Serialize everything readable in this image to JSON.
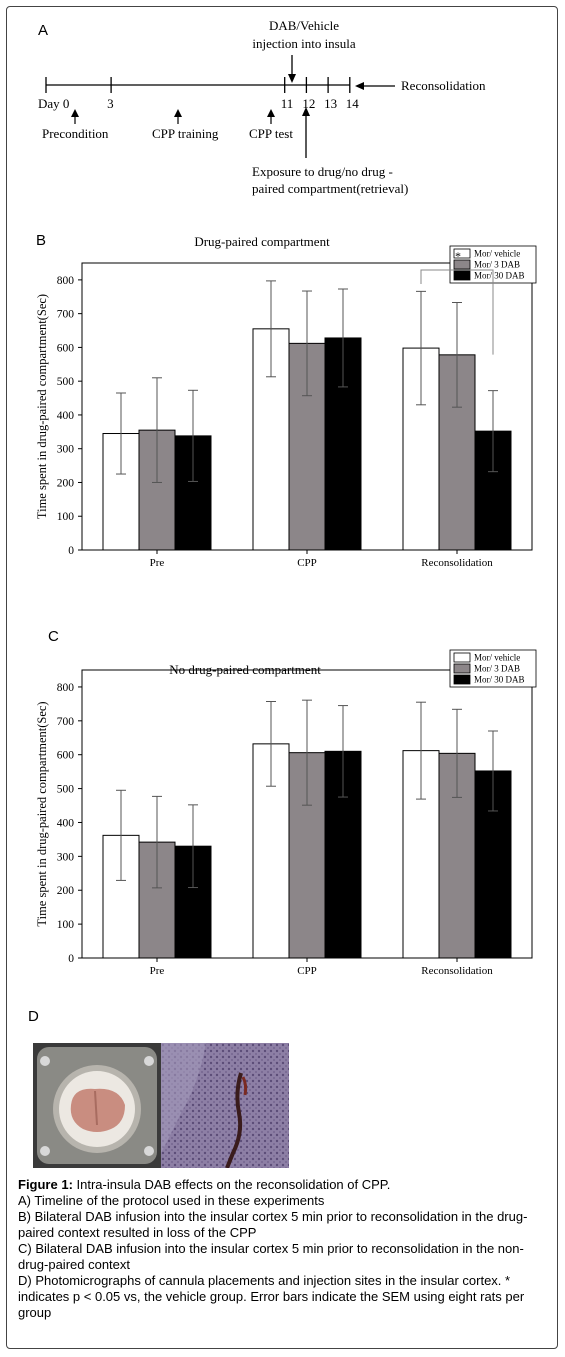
{
  "panels": {
    "a": "A",
    "b": "B",
    "c": "C",
    "d": "D"
  },
  "timeline": {
    "tick_labels": [
      {
        "label": "Day 0",
        "day": 0
      },
      {
        "label": "3",
        "day": 3
      },
      {
        "label": "11",
        "day": 11
      },
      {
        "label": "12",
        "day": 12
      },
      {
        "label": "13",
        "day": 13
      },
      {
        "label": "14",
        "day": 14
      }
    ],
    "events": {
      "precondition": "Precondition",
      "cpp_training": "CPP training",
      "cpp_test": "CPP test",
      "injection_line1": "DAB/Vehicle",
      "injection_line2": "injection into  insula",
      "exposure_line1": "Exposure to drug/no drug -",
      "exposure_line2": "paired compartment(retrieval)",
      "reconsolidation": "Reconsolidation"
    }
  },
  "chart_data": [
    {
      "type": "bar",
      "title": "Drug-paired compartment",
      "ylabel": "Time spent in drug-paired compartment(Sec)",
      "categories": [
        "Pre",
        "CPP",
        "Reconsolidation"
      ],
      "ylim": [
        0,
        850
      ],
      "yticks": [
        "0",
        "100",
        "200",
        "300",
        "400",
        "500",
        "600",
        "700",
        "800"
      ],
      "series": [
        {
          "name": "Mor/ vehicle",
          "values": [
            345,
            655,
            598
          ],
          "errors": [
            120,
            142,
            168
          ]
        },
        {
          "name": "Mor/ 3 DAB",
          "values": [
            355,
            612,
            578
          ],
          "errors": [
            155,
            155,
            155
          ]
        },
        {
          "name": "Mor/ 30 DAB",
          "values": [
            338,
            628,
            352
          ],
          "errors": [
            135,
            145,
            120
          ]
        }
      ],
      "annotation": "*",
      "legend": "top-right"
    },
    {
      "type": "bar",
      "title": "No drug-paired compartment",
      "ylabel": "Time spent in drug-paired compartment(Sec)",
      "categories": [
        "Pre",
        "CPP",
        "Reconsolidation"
      ],
      "ylim": [
        0,
        850
      ],
      "yticks": [
        "0",
        "100",
        "200",
        "300",
        "400",
        "500",
        "600",
        "700",
        "800"
      ],
      "series": [
        {
          "name": "Mor/ vehicle",
          "values": [
            362,
            632,
            612
          ],
          "errors": [
            133,
            125,
            143
          ]
        },
        {
          "name": "Mor/ 3 DAB",
          "values": [
            342,
            606,
            604
          ],
          "errors": [
            135,
            155,
            130
          ]
        },
        {
          "name": "Mor/ 30 DAB",
          "values": [
            330,
            610,
            552
          ],
          "errors": [
            122,
            135,
            118
          ]
        }
      ],
      "legend": "top-right"
    }
  ],
  "colors": {
    "vehicle": "#ffffff",
    "dab3": "#8c8689",
    "dab30": "#000000"
  },
  "caption": {
    "title_bold": "Figure 1:",
    "title_rest": " Intra-insula DAB effects on the reconsolidation of CPP.",
    "a": "A) Timeline of the protocol used in these experiments",
    "b": " B) Bilateral DAB infusion into the insular cortex 5 min prior to reconsolidation in the drug-paired context resulted in loss of the CPP",
    "c": " C) Bilateral DAB infusion into the insular cortex 5 min prior to reconsolidation in the non-drug-paired context",
    "d": "D) Photomicrographs of cannula placements and injection sites in the insular cortex. * indicates p < 0.05 vs, the vehicle group. Error bars indicate the SEM using eight rats per group"
  }
}
